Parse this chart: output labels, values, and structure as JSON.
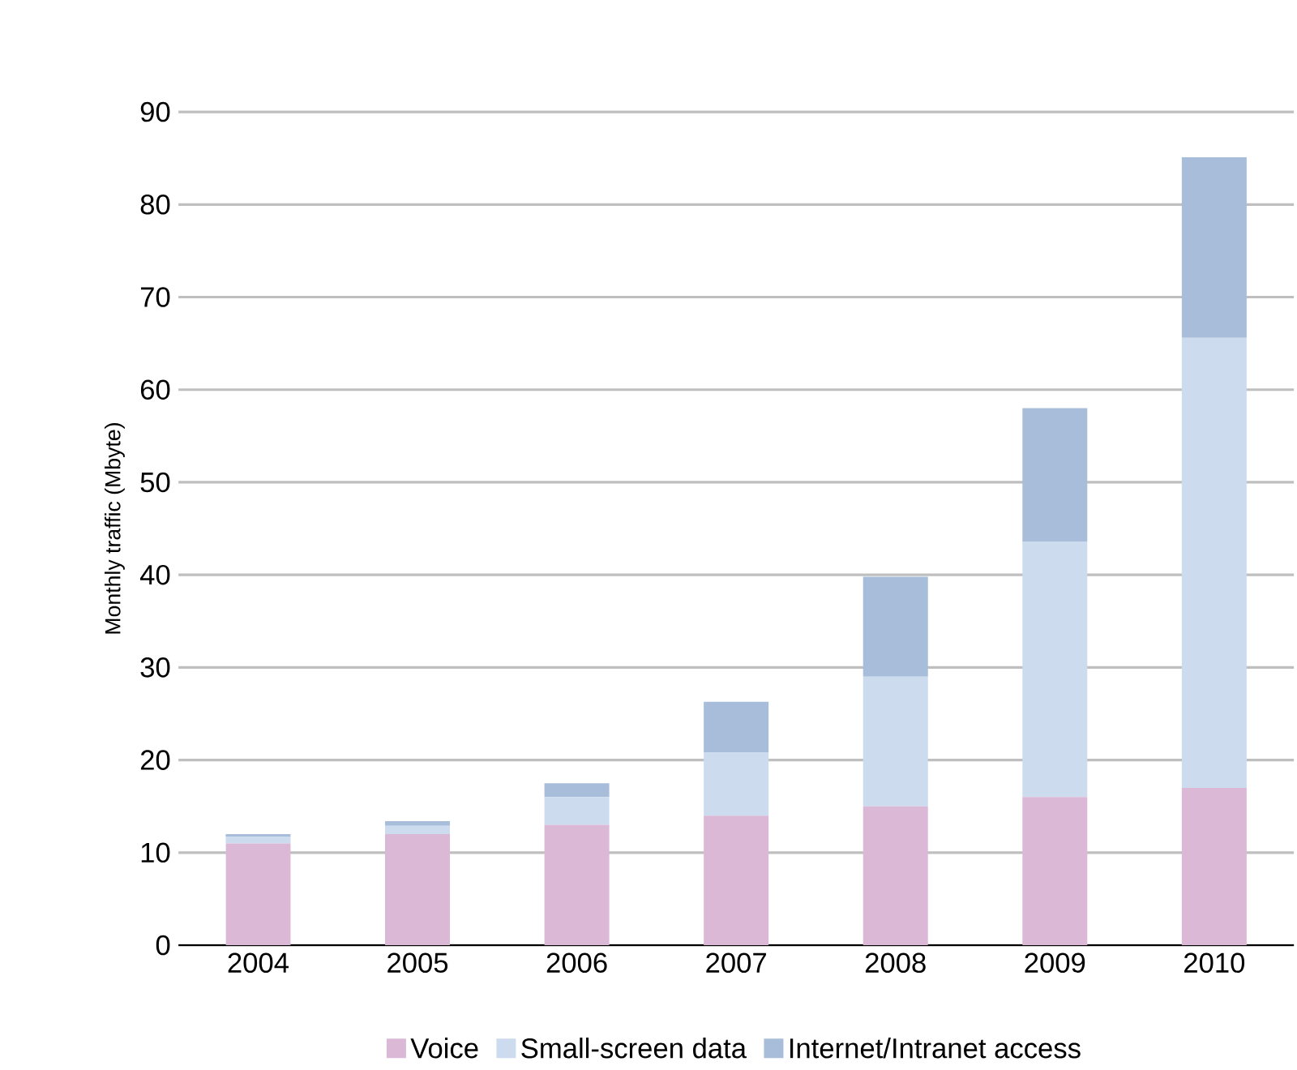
{
  "chart_data": {
    "type": "bar",
    "stacked": true,
    "ylabel": "Monthly traffic (Mbyte)",
    "categories": [
      "2004",
      "2005",
      "2006",
      "2007",
      "2008",
      "2009",
      "2010"
    ],
    "series": [
      {
        "name": "Voice",
        "color": "#dbb8d6",
        "values": [
          11,
          12,
          13,
          14,
          15,
          16,
          17
        ]
      },
      {
        "name": "Small-screen data",
        "color": "#ccdcee",
        "values": [
          0.7,
          0.9,
          3,
          6.8,
          14,
          27.6,
          48.6
        ]
      },
      {
        "name": "Internet/Intranet access",
        "color": "#a7bdd9",
        "values": [
          0.3,
          0.5,
          1.5,
          5.5,
          10.8,
          14.4,
          19.5
        ]
      }
    ],
    "ylim": [
      0,
      90
    ],
    "yticks": [
      0,
      10,
      20,
      30,
      40,
      50,
      60,
      70,
      80,
      90
    ],
    "grid": "y",
    "legend": "bottom"
  }
}
